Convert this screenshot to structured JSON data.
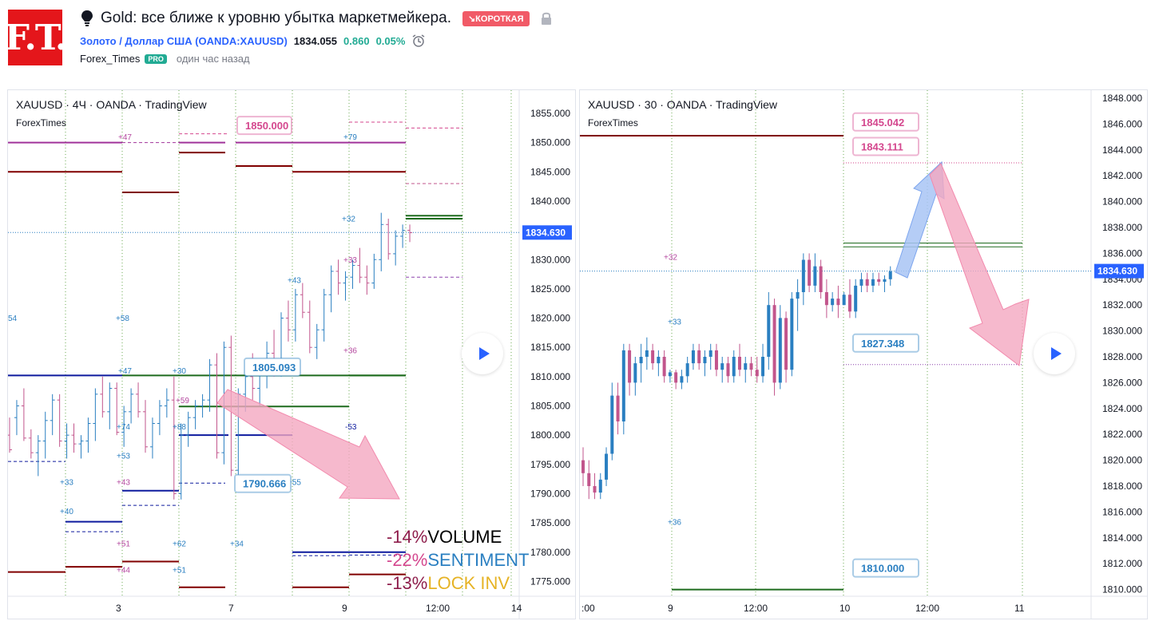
{
  "header": {
    "logo_text": "F.T.",
    "idea_title": "Gold: все ближе к уровню убытка маркетмейкера.",
    "badge": "↘КОРОТКАЯ",
    "symbol": "Золото / Доллар США (OANDA:XAUUSD)",
    "last_price": "1834.055",
    "change": "0.860",
    "change_pct": "0.05%",
    "author": "Forex_Times",
    "pro": "PRO",
    "time_ago": "один час назад"
  },
  "left_chart": {
    "title": "XAUUSD · 4Ч · OANDA · TradingView",
    "subtitle": "ForexTimes",
    "price_axis": [
      "1855.000",
      "1850.000",
      "1845.000",
      "1840.000",
      "1835.000",
      "1830.000",
      "1825.000",
      "1820.000",
      "1815.000",
      "1810.000",
      "1805.000",
      "1800.000",
      "1795.000",
      "1790.000",
      "1785.000",
      "1780.000",
      "1775.000"
    ],
    "current_price": "1834.630",
    "time_axis": [
      "3",
      "7",
      "9",
      "12:00",
      "14"
    ],
    "callouts": [
      "1850.000",
      "1805.093",
      "1790.666"
    ],
    "small_labels": [
      "+47",
      "+79",
      "+32",
      "+33",
      "+43",
      "+58",
      "+36",
      "+47",
      "+30",
      "+59",
      "+74",
      "+88",
      "-53",
      "+53",
      "+33",
      "+43",
      "+55",
      "+40",
      "+51",
      "+62",
      "+34",
      "+44",
      "+51",
      "54"
    ],
    "legend": [
      {
        "pct": "-14%",
        "label": "VOLUME"
      },
      {
        "pct": "-22%",
        "label": "SENTIMENT"
      },
      {
        "pct": "-13%",
        "label": "LOCK INV"
      }
    ]
  },
  "right_chart": {
    "title": "XAUUSD · 30 · OANDA · TradingView",
    "subtitle": "ForexTimes",
    "price_axis": [
      "1848.000",
      "1846.000",
      "1844.000",
      "1842.000",
      "1840.000",
      "1838.000",
      "1836.000",
      "1834.000",
      "1832.000",
      "1830.000",
      "1828.000",
      "1826.000",
      "1824.000",
      "1822.000",
      "1820.000",
      "1818.000",
      "1816.000",
      "1814.000",
      "1812.000",
      "1810.000"
    ],
    "current_price": "1834.630",
    "time_axis": [
      ":00",
      "9",
      "12:00",
      "10",
      "12:00",
      "11"
    ],
    "callouts": [
      "1845.042",
      "1843.111",
      "1827.348",
      "1810.000"
    ],
    "small_labels": [
      "+32",
      "+33",
      "+36"
    ]
  },
  "colors": {
    "candle_up": "#2a7fc1",
    "candle_down": "#c2558c",
    "line_dark_red": "#800000",
    "line_navy": "#0d1a9e",
    "line_green": "#1d6b1d",
    "line_magenta": "#a0339a",
    "arrow_pink": "#f4a7c0",
    "arrow_blue": "#a8c4f5",
    "price_tag": "#2962ff"
  }
}
